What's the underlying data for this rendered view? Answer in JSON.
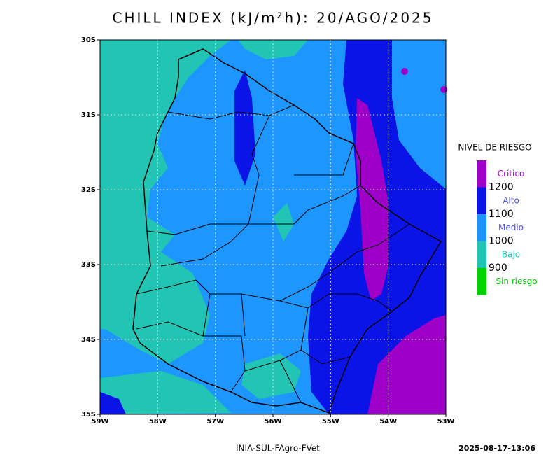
{
  "title": "CHILL INDEX (kJ/m²h): 20/AGO/2025",
  "map": {
    "latlim": [
      -35,
      -30
    ],
    "lonlim": [
      -59,
      -53
    ],
    "lat_ticks": [
      {
        "value": -30,
        "label": "30S"
      },
      {
        "value": -31,
        "label": "31S"
      },
      {
        "value": -32,
        "label": "32S"
      },
      {
        "value": -33,
        "label": "33S"
      },
      {
        "value": -34,
        "label": "34S"
      },
      {
        "value": -35,
        "label": "35S"
      }
    ],
    "lon_ticks": [
      {
        "value": -59,
        "label": "59W"
      },
      {
        "value": -58,
        "label": "58W"
      },
      {
        "value": -57,
        "label": "57W"
      },
      {
        "value": -56,
        "label": "56W"
      },
      {
        "value": -55,
        "label": "55W"
      },
      {
        "value": -54,
        "label": "54W"
      },
      {
        "value": -53,
        "label": "53W"
      }
    ]
  },
  "legend": {
    "title": "NIVEL DE RIESGO",
    "classes": [
      {
        "name": "Critico",
        "color": "#9e00c8"
      },
      {
        "name": "Alto",
        "color": "#0a14e6"
      },
      {
        "name": "Medio",
        "color": "#1e96ff"
      },
      {
        "name": "Bajo",
        "color": "#22c4b4"
      },
      {
        "name": "Sin riesgo",
        "color": "#00d200"
      }
    ],
    "thresholds": [
      1200,
      1100,
      1000,
      900
    ]
  },
  "footer": {
    "source": "INIA-SUL-FAgro-FVet",
    "timestamp": "2025-08-17-13:06"
  }
}
